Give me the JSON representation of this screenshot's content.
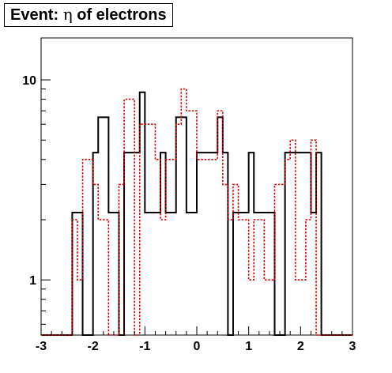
{
  "title": {
    "prefix": "Event: ",
    "symbol": "η",
    "suffix": " of electrons"
  },
  "chart_data": {
    "type": "histogram",
    "title": "Event: η of electrons",
    "xlim": [
      -3,
      3
    ],
    "ylim": [
      0.53,
      16.2
    ],
    "log_y": true,
    "grid": false,
    "x_ticks": [
      -3,
      -2,
      -1,
      0,
      1,
      2,
      3
    ],
    "x_tick_labels": [
      "-3",
      "-2",
      "-1",
      "0",
      "1",
      "2",
      "3"
    ],
    "y_ticks": [
      1,
      10
    ],
    "y_tick_labels": [
      "1",
      "10"
    ],
    "bin_edges": [
      -3.0,
      -2.4,
      -2.3,
      -2.2,
      -2.0,
      -1.9,
      -1.7,
      -1.5,
      -1.4,
      -1.2,
      -1.1,
      -1.0,
      -0.8,
      -0.7,
      -0.6,
      -0.4,
      -0.3,
      -0.2,
      0.0,
      0.2,
      0.4,
      0.5,
      0.6,
      0.7,
      0.8,
      1.0,
      1.1,
      1.3,
      1.5,
      1.7,
      1.8,
      1.9,
      2.0,
      2.1,
      2.2,
      2.3,
      2.4,
      3.0
    ],
    "series": [
      {
        "color": "#000000",
        "style": "solid",
        "values": [
          0.53,
          2.17,
          2.17,
          0.53,
          4.33,
          6.5,
          2.17,
          0.53,
          4.33,
          4.33,
          8.67,
          2.17,
          2.17,
          4.33,
          2.17,
          6.5,
          6.5,
          2.17,
          4.33,
          4.33,
          6.5,
          4.33,
          0.53,
          2.17,
          2.17,
          4.33,
          2.17,
          2.17,
          0.53,
          4.33,
          4.33,
          4.33,
          4.33,
          4.33,
          2.17,
          4.33,
          0.53
        ]
      },
      {
        "color": "#dd0000",
        "style": "dotted",
        "values": [
          0.53,
          2.0,
          1.0,
          4.0,
          3.0,
          2.0,
          0.53,
          3.0,
          8.0,
          0.53,
          6.0,
          6.0,
          4.0,
          2.0,
          4.0,
          6.0,
          9.0,
          7.0,
          4.0,
          4.0,
          7.0,
          3.0,
          2.0,
          3.0,
          2.0,
          1.0,
          2.0,
          1.0,
          3.0,
          4.0,
          5.0,
          1.0,
          1.0,
          2.0,
          5.0,
          0.53,
          0.53
        ]
      }
    ]
  }
}
